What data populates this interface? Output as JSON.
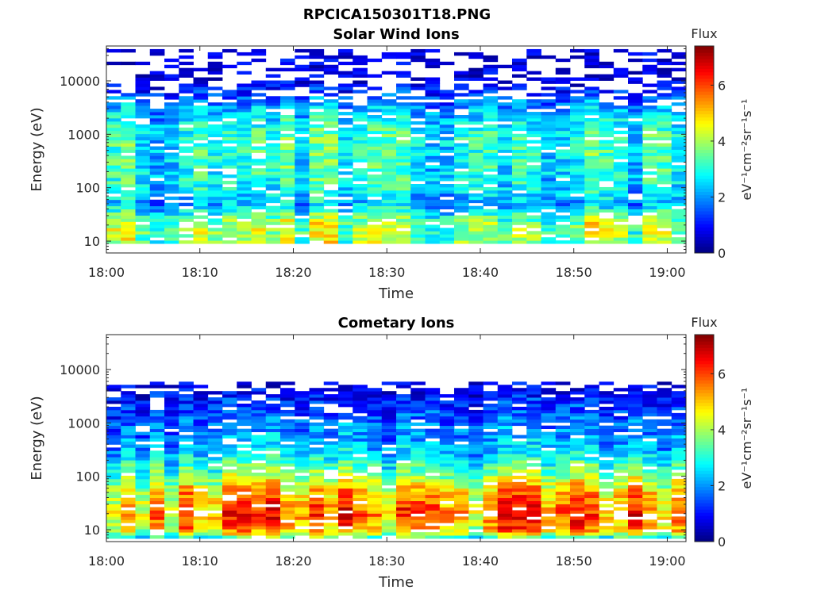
{
  "figure": {
    "title": "RPCICA150301T18.PNG"
  },
  "chart_data": [
    {
      "type": "heatmap",
      "title": "Solar Wind Ions",
      "xlabel": "Time",
      "ylabel": "Energy (eV)",
      "x_ticks": [
        "18:00",
        "18:10",
        "18:20",
        "18:30",
        "18:40",
        "18:50",
        "19:00"
      ],
      "x_range": [
        "18:00",
        "19:02"
      ],
      "y_scale": "log",
      "y_ticks": [
        "10",
        "100",
        "1000",
        "10000"
      ],
      "y_range": [
        6,
        45000
      ],
      "colorbar": {
        "title": "Flux",
        "label": "eV⁻¹cm⁻²sr⁻¹s⁻¹",
        "range": [
          0,
          7.4
        ],
        "ticks": [
          "0",
          "2",
          "4",
          "6"
        ],
        "colormap": "jet"
      },
      "profile": [
        {
          "energy_eV": 10,
          "flux": 3.8
        },
        {
          "energy_eV": 20,
          "flux": 4.0
        },
        {
          "energy_eV": 50,
          "flux": 2.2
        },
        {
          "energy_eV": 100,
          "flux": 2.8
        },
        {
          "energy_eV": 300,
          "flux": 3.0
        },
        {
          "energy_eV": 1000,
          "flux": 3.0
        },
        {
          "energy_eV": 2500,
          "flux": 2.4
        },
        {
          "energy_eV": 10000,
          "flux": 0.6
        },
        {
          "energy_eV": 35000,
          "flux": 0.5
        }
      ]
    },
    {
      "type": "heatmap",
      "title": "Cometary Ions",
      "xlabel": "Time",
      "ylabel": "Energy (eV)",
      "x_ticks": [
        "18:00",
        "18:10",
        "18:20",
        "18:30",
        "18:40",
        "18:50",
        "19:00"
      ],
      "x_range": [
        "18:00",
        "19:02"
      ],
      "y_scale": "log",
      "y_ticks": [
        "10",
        "100",
        "1000",
        "10000"
      ],
      "y_range": [
        6,
        45000
      ],
      "colorbar": {
        "title": "Flux",
        "label": "eV⁻¹cm⁻²sr⁻¹s⁻¹",
        "range": [
          0,
          7.4
        ],
        "ticks": [
          "0",
          "2",
          "4",
          "6"
        ],
        "colormap": "jet"
      },
      "profile": [
        {
          "energy_eV": 7,
          "flux": 3.0
        },
        {
          "energy_eV": 10,
          "flux": 4.8
        },
        {
          "energy_eV": 20,
          "flux": 5.4
        },
        {
          "energy_eV": 50,
          "flux": 4.8
        },
        {
          "energy_eV": 100,
          "flux": 3.6
        },
        {
          "energy_eV": 300,
          "flux": 2.2
        },
        {
          "energy_eV": 1000,
          "flux": 1.6
        },
        {
          "energy_eV": 3000,
          "flux": 1.0
        },
        {
          "energy_eV": 5000,
          "flux": 0.6
        }
      ]
    }
  ]
}
